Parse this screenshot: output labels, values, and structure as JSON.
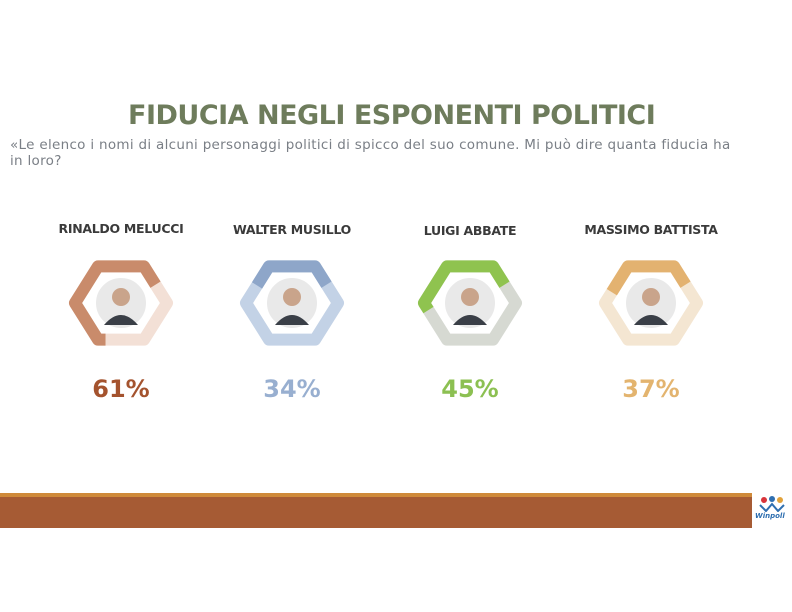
{
  "slide": {
    "title": "FIDUCIA NEGLI ESPONENTI POLITICI",
    "subtitle": "«Le elenco i nomi di alcuni personaggi politici di spicco del suo comune. Mi può dire quanta fiducia ha in loro?"
  },
  "politicians": [
    {
      "name": "RINALDO MELUCCI",
      "percent_label": "61%",
      "percent": 61,
      "color": "#c98b6b",
      "track": "#f3e0d6",
      "text_color": "#a4532e",
      "photo_icon": "person-photo-icon"
    },
    {
      "name": "WALTER MUSILLO",
      "percent_label": "34%",
      "percent": 34,
      "color": "#8ea6c9",
      "track": "#c3d2e6",
      "text_color": "#98afd0",
      "photo_icon": "person-photo-icon"
    },
    {
      "name": "LUIGI ABBATE",
      "percent_label": "45%",
      "percent": 45,
      "color": "#8fc34f",
      "track": "#d6d9d2",
      "text_color": "#8cc052",
      "photo_icon": "person-photo-icon"
    },
    {
      "name": "MASSIMO BATTISTA",
      "percent_label": "37%",
      "percent": 37,
      "color": "#e3b270",
      "track": "#f4e6d2",
      "text_color": "#e3b46f",
      "photo_icon": "person-photo-icon"
    }
  ],
  "footer": {
    "logo_text": "Winpoll",
    "stripe_color": "#a65b34",
    "accent_color": "#cf8a3a"
  }
}
